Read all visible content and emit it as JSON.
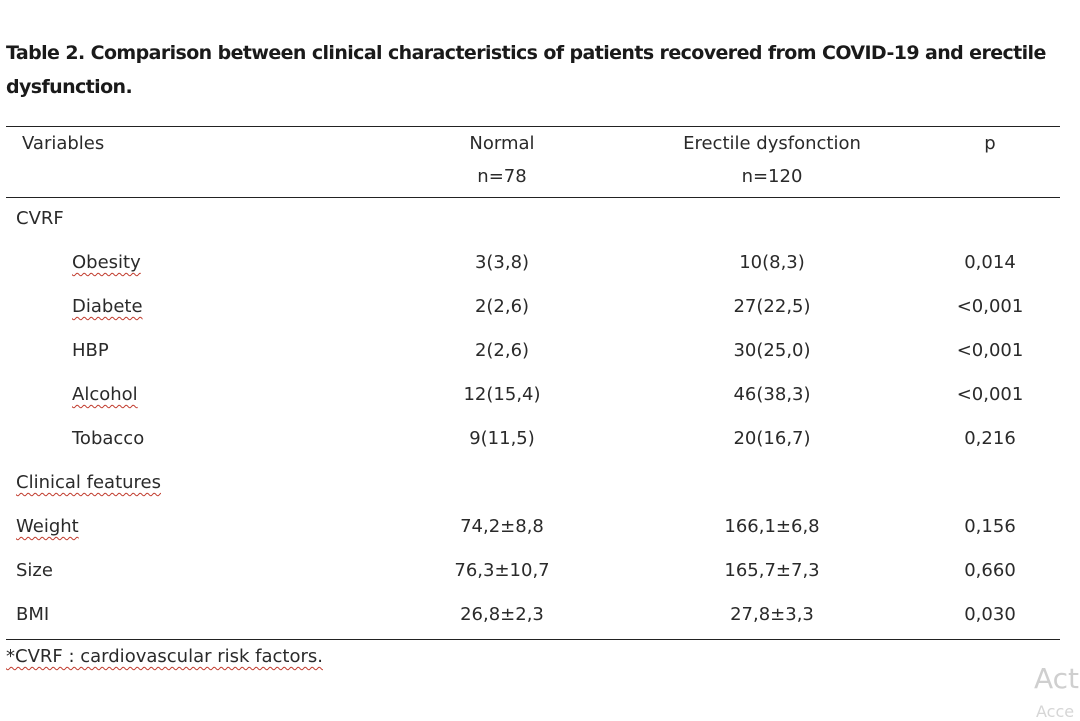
{
  "caption": "Table 2. Comparison between clinical characteristics of patients recovered from COVID-19 and erectile dysfunction.",
  "header": {
    "variables": "Variables",
    "normal": "Normal",
    "normal_n": "n=78",
    "ed": "Erectile dysfonction",
    "ed_n": "n=120",
    "p": "p"
  },
  "rows": [
    {
      "label": "CVRF",
      "normal": "",
      "ed": "",
      "p": ""
    },
    {
      "label": "Obesity",
      "normal": "3(3,8)",
      "ed": "10(8,3)",
      "p": "0,014"
    },
    {
      "label": "Diabete",
      "normal": "2(2,6)",
      "ed": "27(22,5)",
      "p": "<0,001"
    },
    {
      "label": "HBP",
      "normal": "2(2,6)",
      "ed": "30(25,0)",
      "p": "<0,001"
    },
    {
      "label": "Alcohol",
      "normal": "12(15,4)",
      "ed": "46(38,3)",
      "p": "<0,001"
    },
    {
      "label": "Tobacco",
      "normal": "9(11,5)",
      "ed": "20(16,7)",
      "p": "0,216"
    },
    {
      "label": "Clinical features",
      "normal": "",
      "ed": "",
      "p": ""
    },
    {
      "label": "Weight",
      "normal": "74,2±8,8",
      "ed": "166,1±6,8",
      "p": "0,156"
    },
    {
      "label": "Size",
      "normal": "76,3±10,7",
      "ed": "165,7±7,3",
      "p": "0,660"
    },
    {
      "label": "BMI",
      "normal": "26,8±2,3",
      "ed": "27,8±3,3",
      "p": "0,030"
    }
  ],
  "footnote": "*CVRF : cardiovascular risk factors.",
  "watermark": "Act",
  "watermark2": "Acce"
}
